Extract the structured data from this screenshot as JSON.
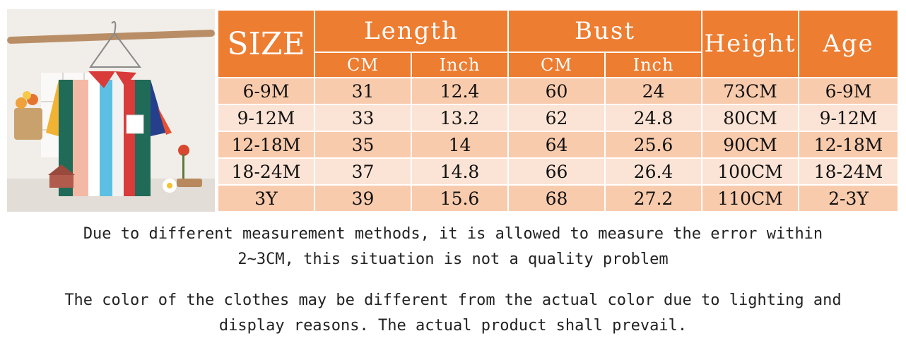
{
  "table": {
    "size_header": "SIZE",
    "length_header": "Length",
    "bust_header": "Bust",
    "height_header": "Height",
    "age_header": "Age",
    "sub_headers": [
      "CM",
      "Inch",
      "CM",
      "Inch"
    ],
    "rows": [
      [
        "6-9M",
        "31",
        "12.4",
        "60",
        "24",
        "73CM",
        "6-9M"
      ],
      [
        "9-12M",
        "33",
        "13.2",
        "62",
        "24.8",
        "80CM",
        "9-12M"
      ],
      [
        "12-18M",
        "35",
        "14",
        "64",
        "25.6",
        "90CM",
        "12-18M"
      ],
      [
        "18-24M",
        "37",
        "14.8",
        "66",
        "26.4",
        "100CM",
        "18-24M"
      ],
      [
        "3Y",
        "39",
        "15.6",
        "68",
        "27.2",
        "110CM",
        "2-3Y"
      ]
    ]
  },
  "notes": {
    "measure_line1": "Due to different measurement methods, it is allowed to measure the error within",
    "measure_line2": "2~3CM, this situation is not a quality problem",
    "color_line1": "The color of the clothes may be different from the actual color due to lighting and",
    "color_line2": "display reasons. The actual product shall prevail."
  },
  "colors": {
    "header": "#ed7d31",
    "row_odd": "#f8cbad",
    "row_even": "#fbe4d5"
  }
}
